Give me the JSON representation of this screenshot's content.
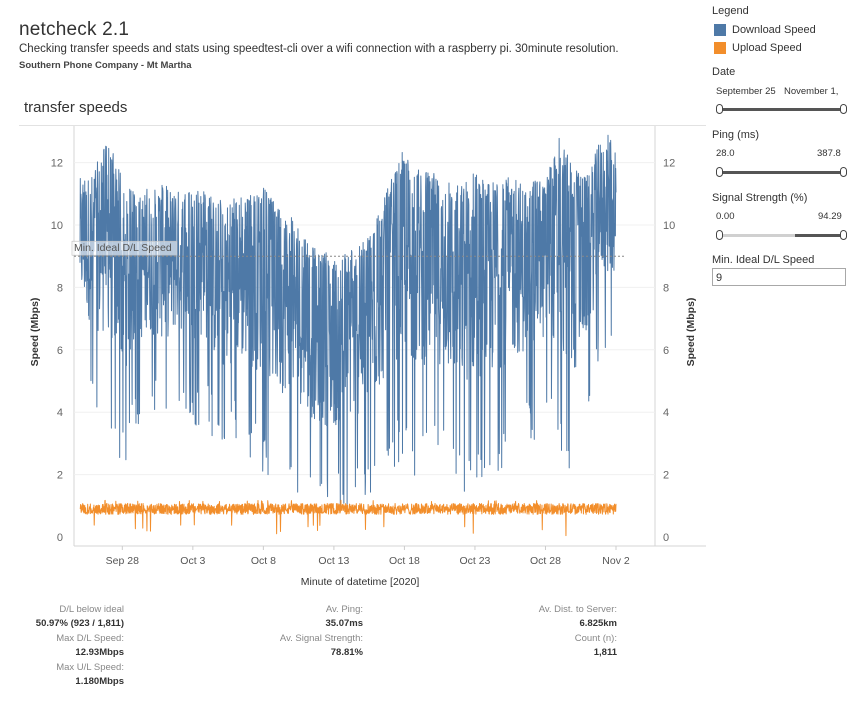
{
  "header": {
    "title": "netcheck 2.1",
    "subtitle": "Checking transfer speeds and stats using speedtest-cli over a wifi connection with a raspberry pi. 30minute resolution.",
    "company": "Southern Phone Company - Mt Martha"
  },
  "sheet_title": "transfer speeds",
  "legend": {
    "title": "Legend",
    "items": [
      {
        "label": "Download Speed",
        "color": "#4e79a7"
      },
      {
        "label": "Upload Speed",
        "color": "#f28e2b"
      }
    ]
  },
  "filters": {
    "date": {
      "label": "Date",
      "min": "September 25",
      "max": "November 1,"
    },
    "ping": {
      "label": "Ping (ms)",
      "min": "28.0",
      "max": "387.8"
    },
    "signal": {
      "label": "Signal Strength (%)",
      "min": "0.00",
      "max": "94.29"
    },
    "min_ideal": {
      "label": "Min. Ideal D/L Speed",
      "value": "9"
    }
  },
  "stats": {
    "dl_below_ideal_label": "D/L below ideal",
    "dl_below_ideal_value": "50.97% (923 / 1,811)",
    "max_dl_label": "Max D/L Speed:",
    "max_dl_value": "12.93Mbps",
    "max_ul_label": "Max U/L Speed:",
    "max_ul_value": "1.180Mbps",
    "av_ping_label": "Av. Ping:",
    "av_ping_value": "35.07ms",
    "av_signal_label": "Av. Signal Strength:",
    "av_signal_value": "78.81%",
    "av_dist_label": "Av. Dist. to Server:",
    "av_dist_value": "6.825km",
    "count_label": "Count (n):",
    "count_value": "1,811"
  },
  "chart_data": {
    "type": "line",
    "xlabel": "Minute of datetime [2020]",
    "ylabel": "Speed (Mbps)",
    "ylabel_right": "Speed (Mbps)",
    "x_range": [
      "2020-09-25",
      "2020-11-02"
    ],
    "ylim": [
      0,
      13.5
    ],
    "y_ticks": [
      0,
      2,
      4,
      6,
      8,
      10,
      12
    ],
    "x_ticks": [
      {
        "label": "Sep 28",
        "date": "2020-09-28"
      },
      {
        "label": "Oct 3",
        "date": "2020-10-03"
      },
      {
        "label": "Oct 8",
        "date": "2020-10-08"
      },
      {
        "label": "Oct 13",
        "date": "2020-10-13"
      },
      {
        "label": "Oct 18",
        "date": "2020-10-18"
      },
      {
        "label": "Oct 23",
        "date": "2020-10-23"
      },
      {
        "label": "Oct 28",
        "date": "2020-10-28"
      },
      {
        "label": "Nov 2",
        "date": "2020-11-02"
      }
    ],
    "reference_line": {
      "label": "Min. Ideal D/L Speed",
      "value": 9
    },
    "series": [
      {
        "name": "Download Speed",
        "color": "#4e79a7",
        "x": [
          "2020-09-25",
          "2020-09-26",
          "2020-09-27",
          "2020-09-28",
          "2020-09-29",
          "2020-09-30",
          "2020-10-01",
          "2020-10-02",
          "2020-10-03",
          "2020-10-04",
          "2020-10-05",
          "2020-10-06",
          "2020-10-07",
          "2020-10-08",
          "2020-10-09",
          "2020-10-10",
          "2020-10-11",
          "2020-10-12",
          "2020-10-13",
          "2020-10-14",
          "2020-10-15",
          "2020-10-16",
          "2020-10-17",
          "2020-10-18",
          "2020-10-19",
          "2020-10-20",
          "2020-10-21",
          "2020-10-22",
          "2020-10-23",
          "2020-10-24",
          "2020-10-25",
          "2020-10-26",
          "2020-10-27",
          "2020-10-28",
          "2020-10-29",
          "2020-10-30",
          "2020-10-31",
          "2020-11-01"
        ],
        "max": [
          11.5,
          11.8,
          12.8,
          11.5,
          11.0,
          11.2,
          11.3,
          11.2,
          11.4,
          11.0,
          10.8,
          10.9,
          11.0,
          11.2,
          10.6,
          10.5,
          9.5,
          9.2,
          9.0,
          9.3,
          9.4,
          10.2,
          11.4,
          12.5,
          11.8,
          11.7,
          11.4,
          11.4,
          12.0,
          11.5,
          11.6,
          11.5,
          11.4,
          11.5,
          12.9,
          11.8,
          11.6,
          12.9
        ],
        "min": [
          5.5,
          3.8,
          3.2,
          1.8,
          3.5,
          4.0,
          3.6,
          4.2,
          3.4,
          3.8,
          2.1,
          3.0,
          2.5,
          2.0,
          1.2,
          1.8,
          0.9,
          0.6,
          0.5,
          0.7,
          1.0,
          1.4,
          2.2,
          2.4,
          1.8,
          2.6,
          2.0,
          1.2,
          1.5,
          1.6,
          2.2,
          2.8,
          3.0,
          3.5,
          2.4,
          1.4,
          3.8,
          6.0
        ]
      },
      {
        "name": "Upload Speed",
        "color": "#f28e2b",
        "x": [
          "2020-09-25",
          "2020-11-01"
        ],
        "avg": [
          0.9,
          0.9
        ],
        "max": 1.18,
        "min": 0.0
      }
    ]
  }
}
